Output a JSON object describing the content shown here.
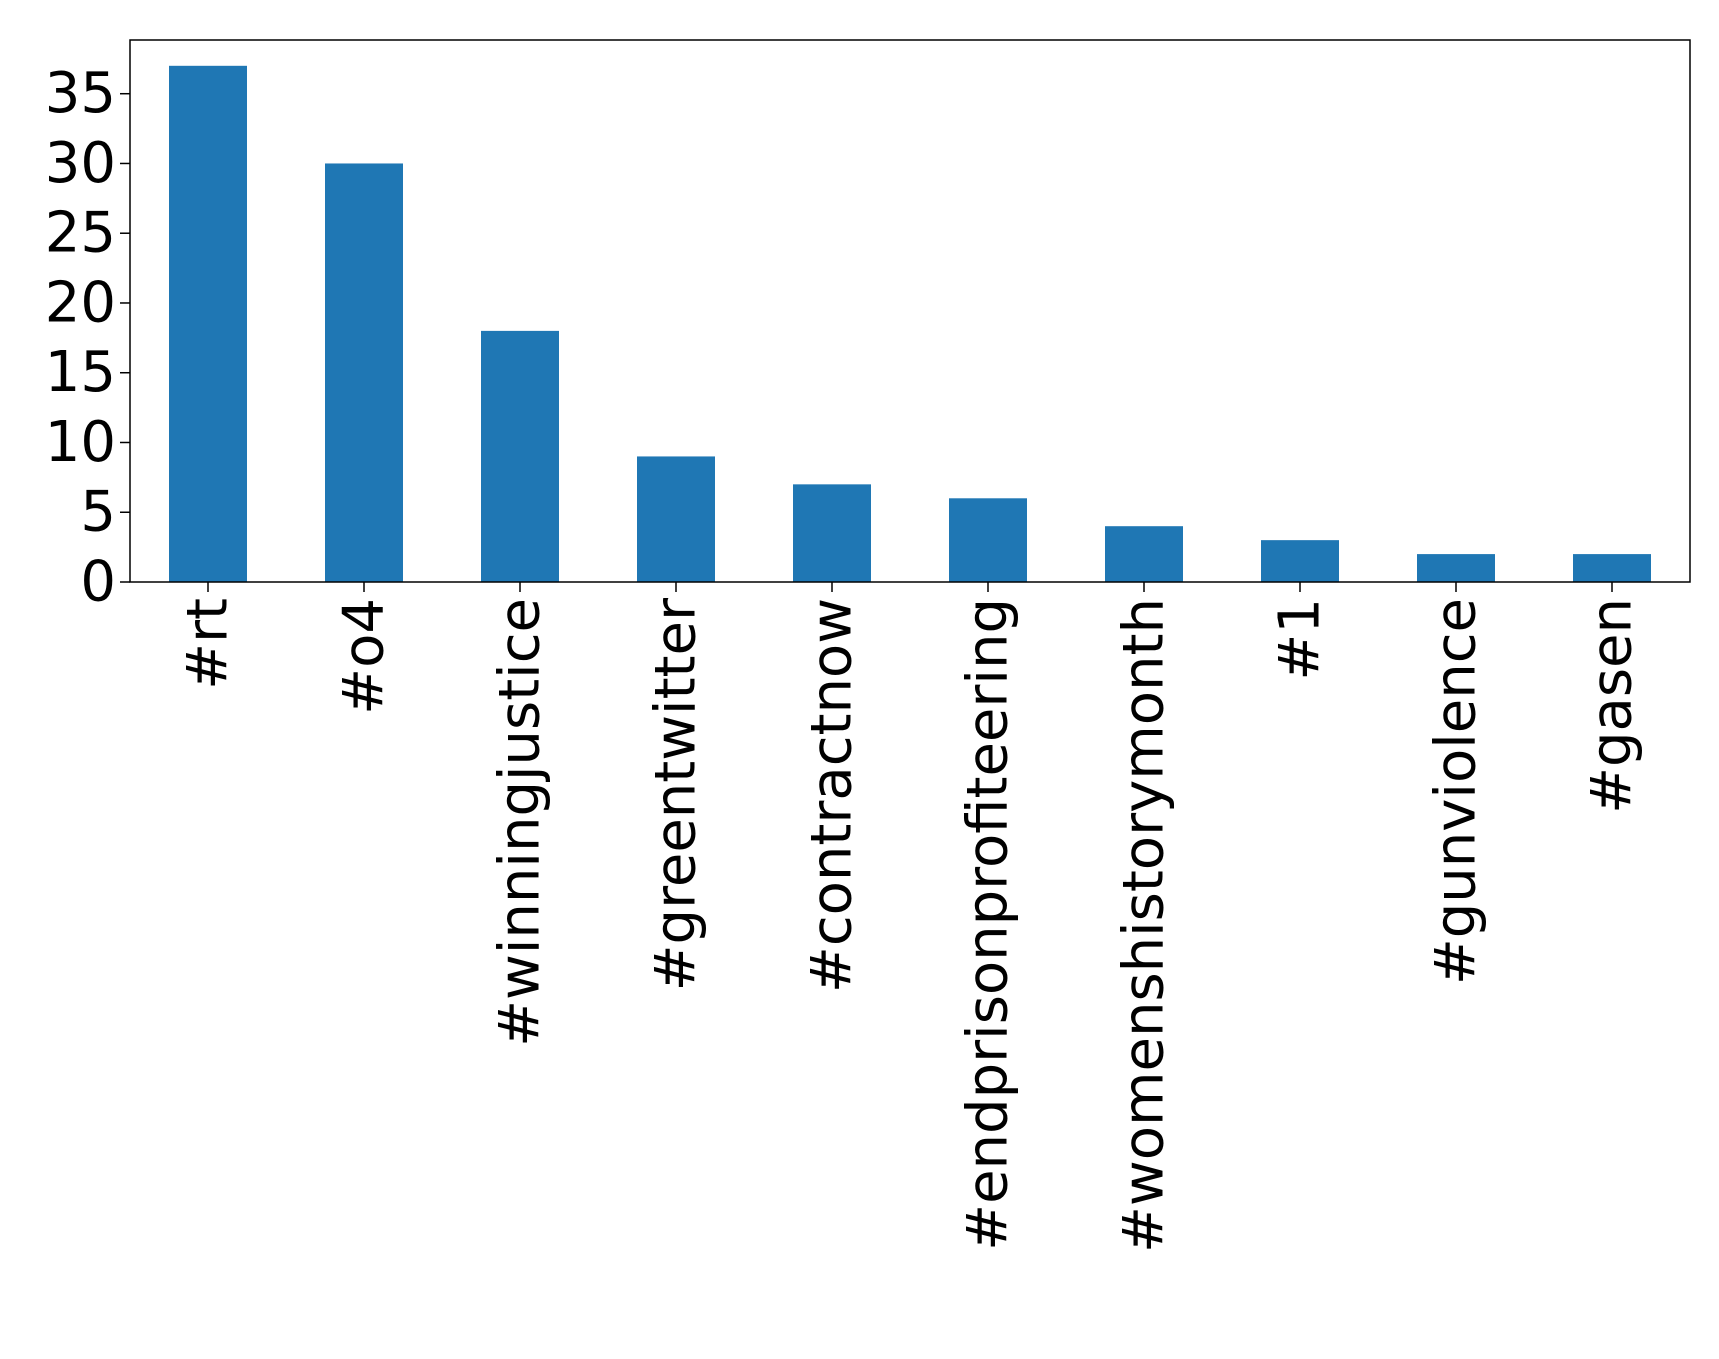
{
  "chart_data": {
    "type": "bar",
    "categories": [
      "#rt",
      "#o4",
      "#winningjustice",
      "#greentwitter",
      "#contractnow",
      "#endprisonprofiteering",
      "#womenshistorymonth",
      "#1",
      "#gunviolence",
      "#gasen"
    ],
    "values": [
      37,
      30,
      18,
      9,
      7,
      6,
      4,
      3,
      2,
      2
    ],
    "title": "",
    "xlabel": "",
    "ylabel": "",
    "ylim": [
      0,
      38.85
    ],
    "yticks": [
      0,
      5,
      10,
      15,
      20,
      25,
      30,
      35
    ],
    "grid": false,
    "legend": "none",
    "bar_color": "#1f77b4"
  }
}
